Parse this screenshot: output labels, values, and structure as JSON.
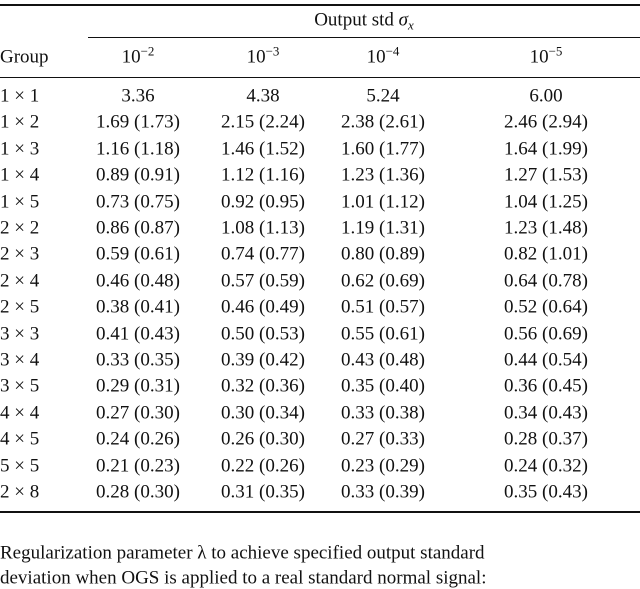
{
  "table": {
    "spanner": {
      "text": "Output std",
      "symbol": "σ",
      "subscript": "x"
    },
    "group_header": "Group",
    "columns": [
      {
        "base": "10",
        "exponent": "−2"
      },
      {
        "base": "10",
        "exponent": "−3"
      },
      {
        "base": "10",
        "exponent": "−4"
      },
      {
        "base": "10",
        "exponent": "−5"
      }
    ],
    "rows": [
      [
        "1 × 1",
        "3.36",
        "4.38",
        "5.24",
        "6.00"
      ],
      [
        "1 × 2",
        "1.69 (1.73)",
        "2.15 (2.24)",
        "2.38 (2.61)",
        "2.46 (2.94)"
      ],
      [
        "1 × 3",
        "1.16 (1.18)",
        "1.46 (1.52)",
        "1.60 (1.77)",
        "1.64 (1.99)"
      ],
      [
        "1 × 4",
        "0.89 (0.91)",
        "1.12 (1.16)",
        "1.23 (1.36)",
        "1.27 (1.53)"
      ],
      [
        "1 × 5",
        "0.73 (0.75)",
        "0.92 (0.95)",
        "1.01 (1.12)",
        "1.04 (1.25)"
      ],
      [
        "2 × 2",
        "0.86 (0.87)",
        "1.08 (1.13)",
        "1.19 (1.31)",
        "1.23 (1.48)"
      ],
      [
        "2 × 3",
        "0.59 (0.61)",
        "0.74 (0.77)",
        "0.80 (0.89)",
        "0.82 (1.01)"
      ],
      [
        "2 × 4",
        "0.46 (0.48)",
        "0.57 (0.59)",
        "0.62 (0.69)",
        "0.64 (0.78)"
      ],
      [
        "2 × 5",
        "0.38 (0.41)",
        "0.46 (0.49)",
        "0.51 (0.57)",
        "0.52 (0.64)"
      ],
      [
        "3 × 3",
        "0.41 (0.43)",
        "0.50 (0.53)",
        "0.55 (0.61)",
        "0.56 (0.69)"
      ],
      [
        "3 × 4",
        "0.33 (0.35)",
        "0.39 (0.42)",
        "0.43 (0.48)",
        "0.44 (0.54)"
      ],
      [
        "3 × 5",
        "0.29 (0.31)",
        "0.32 (0.36)",
        "0.35 (0.40)",
        "0.36 (0.45)"
      ],
      [
        "4 × 4",
        "0.27 (0.30)",
        "0.30 (0.34)",
        "0.33 (0.38)",
        "0.34 (0.43)"
      ],
      [
        "4 × 5",
        "0.24 (0.26)",
        "0.26 (0.30)",
        "0.27 (0.33)",
        "0.28 (0.37)"
      ],
      [
        "5 × 5",
        "0.21 (0.23)",
        "0.22 (0.26)",
        "0.23 (0.29)",
        "0.24 (0.32)"
      ],
      [
        "2 × 8",
        "0.28 (0.30)",
        "0.31 (0.35)",
        "0.33 (0.39)",
        "0.35 (0.43)"
      ]
    ]
  },
  "caption": {
    "lines": [
      "Regularization parameter λ to achieve specified output standard",
      "deviation when OGS is applied to a real standard normal signal:"
    ]
  }
}
